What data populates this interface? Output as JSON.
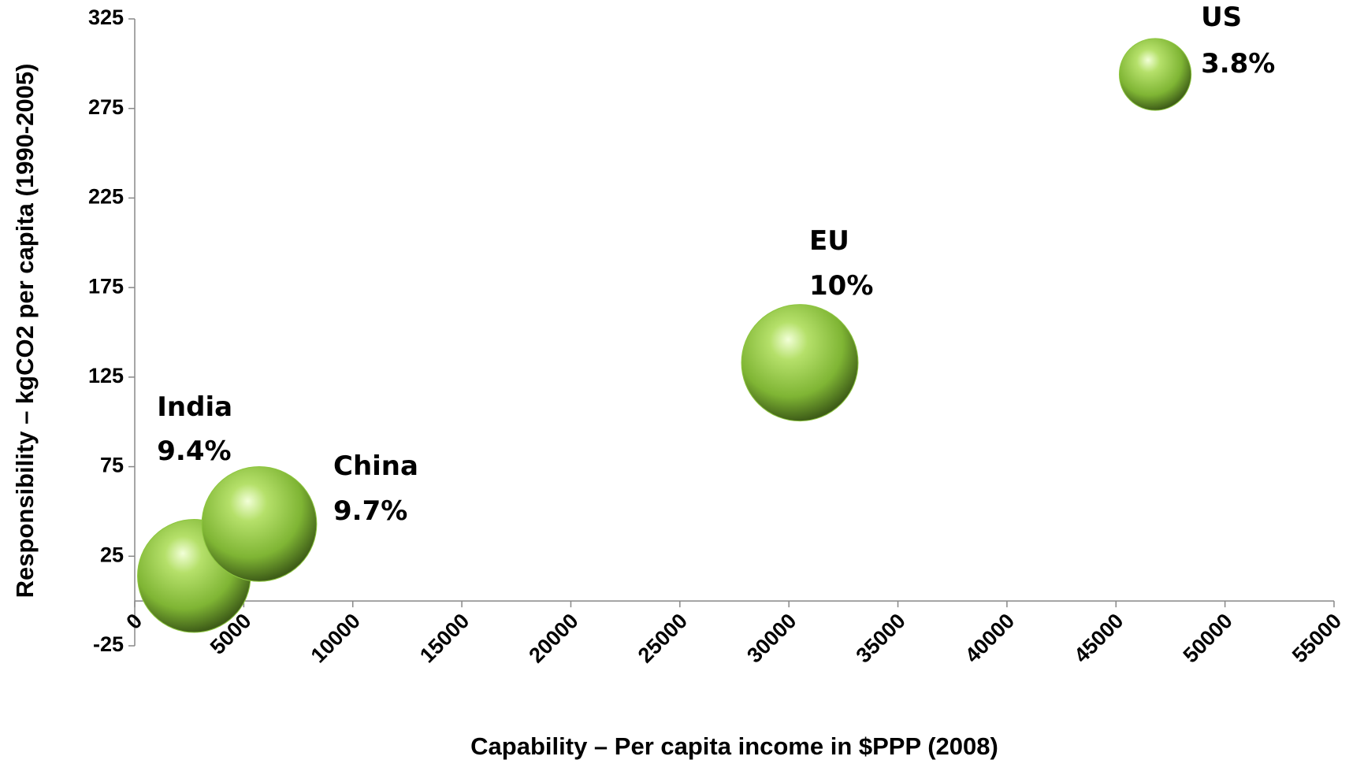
{
  "chart_data": {
    "type": "bubble",
    "x_label": "Capability – Per capita income in $PPP (2008)",
    "y_label": "Responsibility – kgCO2 per capita (1990-2005)",
    "labels": [
      "India",
      "China",
      "EU",
      "US"
    ],
    "x": [
      2720,
      5710,
      30500,
      46800
    ],
    "values": [
      14,
      43,
      133,
      294
    ],
    "sizes": [
      9.4,
      9.7,
      10,
      3.8
    ],
    "size_labels": [
      "9.4%",
      "9.7%",
      "10%",
      "3.8%"
    ],
    "color": "#8dc63f",
    "xlim": [
      0,
      55000
    ],
    "xticks": [
      0,
      5000,
      10000,
      15000,
      20000,
      25000,
      30000,
      35000,
      40000,
      45000,
      50000,
      55000
    ],
    "ylim": [
      -25,
      325
    ],
    "yticks": [
      -25,
      25,
      75,
      125,
      175,
      225,
      275,
      325
    ],
    "grid": false
  }
}
